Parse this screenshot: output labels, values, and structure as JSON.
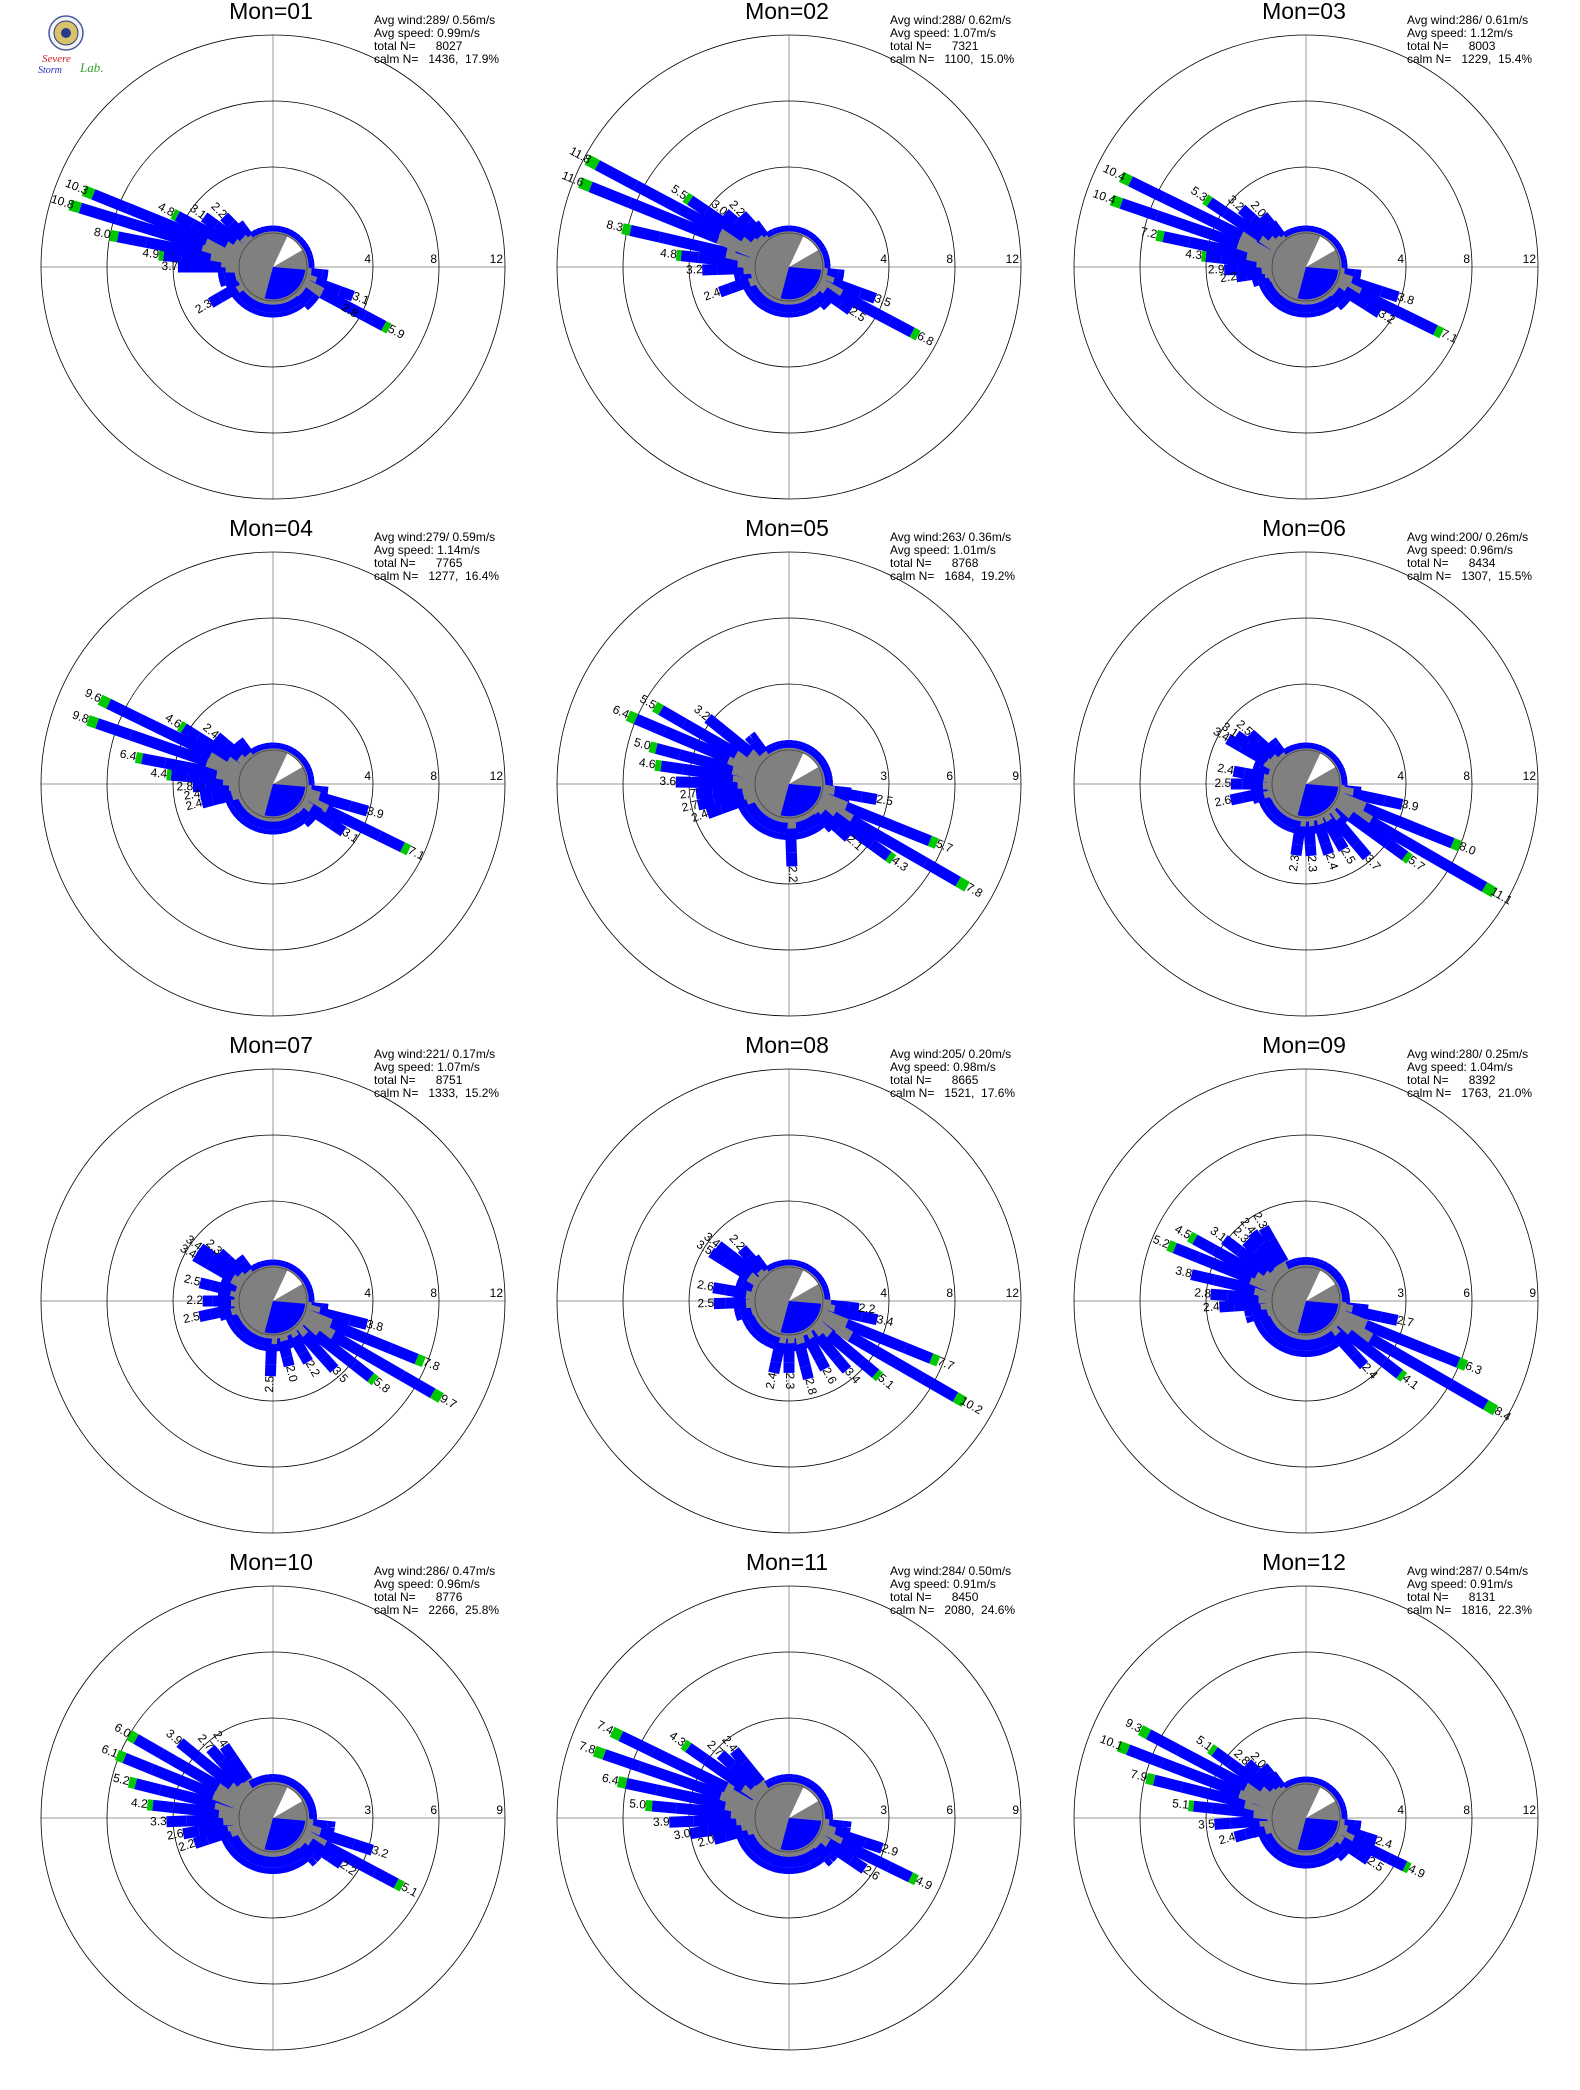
{
  "logo": {
    "line1": "Severe",
    "line2": "Storm",
    "line3": "Lab."
  },
  "colors": {
    "low": "#808080",
    "mid": "#0000ff",
    "high": "#00c800",
    "ring": "#000000",
    "axis": "#999999"
  },
  "chart_data": [
    {
      "type": "polar-wind-rose",
      "title": "Mon=01",
      "stats": {
        "avg_wind": "Avg wind:289/ 0.56m/s",
        "avg_speed": "Avg speed: 0.99m/s",
        "total_n": "total N=      8027",
        "calm_n": "calm N=   1436,  17.9%"
      },
      "rings": [
        4,
        8,
        12
      ],
      "labeled_bars": [
        {
          "dir": 292,
          "value": 10.3,
          "label": "10.3"
        },
        {
          "dir": 287,
          "value": 10.8,
          "label": "10.8"
        },
        {
          "dir": 281,
          "value": 8.0,
          "label": "8.0"
        },
        {
          "dir": 276,
          "value": 4.9,
          "label": "4.9"
        },
        {
          "dir": 270,
          "value": 3.7,
          "label": "3.7"
        },
        {
          "dir": 298,
          "value": 4.8,
          "label": "4.8"
        },
        {
          "dir": 306,
          "value": 3.1,
          "label": "3.1"
        },
        {
          "dir": 316,
          "value": 2.2,
          "label": "2.2"
        },
        {
          "dir": 240,
          "value": 2.3,
          "label": "2.3"
        },
        {
          "dir": 110,
          "value": 3.1,
          "label": "3.1"
        },
        {
          "dir": 120,
          "value": 2.8,
          "label": "2.8"
        },
        {
          "dir": 118,
          "value": 5.9,
          "label": "5.9"
        }
      ]
    },
    {
      "type": "polar-wind-rose",
      "title": "Mon=02",
      "stats": {
        "avg_wind": "Avg wind:288/ 0.62m/s",
        "avg_speed": "Avg speed: 1.07m/s",
        "total_n": "total N=      7321",
        "calm_n": "calm N=   1100,  15.0%"
      },
      "rings": [
        4,
        8,
        12
      ],
      "labeled_bars": [
        {
          "dir": 298,
          "value": 11.8,
          "label": "11.8"
        },
        {
          "dir": 292,
          "value": 11.6,
          "label": "11.6"
        },
        {
          "dir": 283,
          "value": 8.3,
          "label": "8.3"
        },
        {
          "dir": 276,
          "value": 4.8,
          "label": "4.8"
        },
        {
          "dir": 268,
          "value": 3.2,
          "label": "3.2"
        },
        {
          "dir": 304,
          "value": 5.5,
          "label": "5.5"
        },
        {
          "dir": 310,
          "value": 3.0,
          "label": "3.0"
        },
        {
          "dir": 318,
          "value": 2.2,
          "label": "2.2"
        },
        {
          "dir": 250,
          "value": 2.4,
          "label": "2.4"
        },
        {
          "dir": 110,
          "value": 3.5,
          "label": "3.5"
        },
        {
          "dir": 125,
          "value": 2.5,
          "label": "2.5"
        },
        {
          "dir": 118,
          "value": 6.8,
          "label": "6.8"
        }
      ]
    },
    {
      "type": "polar-wind-rose",
      "title": "Mon=03",
      "stats": {
        "avg_wind": "Avg wind:286/ 0.61m/s",
        "avg_speed": "Avg speed: 1.12m/s",
        "total_n": "total N=      8003",
        "calm_n": "calm N=   1229,  15.4%"
      },
      "rings": [
        4,
        8,
        12
      ],
      "labeled_bars": [
        {
          "dir": 296,
          "value": 10.4,
          "label": "10.4"
        },
        {
          "dir": 289,
          "value": 10.4,
          "label": "10.4"
        },
        {
          "dir": 282,
          "value": 7.2,
          "label": "7.2"
        },
        {
          "dir": 276,
          "value": 4.3,
          "label": "4.3"
        },
        {
          "dir": 268,
          "value": 2.9,
          "label": "2.9"
        },
        {
          "dir": 262,
          "value": 2.2,
          "label": "2.2"
        },
        {
          "dir": 304,
          "value": 5.3,
          "label": "5.3"
        },
        {
          "dir": 312,
          "value": 3.2,
          "label": "3.2"
        },
        {
          "dir": 320,
          "value": 2.0,
          "label": "2.0"
        },
        {
          "dir": 108,
          "value": 3.8,
          "label": "3.8"
        },
        {
          "dir": 122,
          "value": 3.2,
          "label": "3.2"
        },
        {
          "dir": 116,
          "value": 7.1,
          "label": "7.1"
        }
      ]
    },
    {
      "type": "polar-wind-rose",
      "title": "Mon=04",
      "stats": {
        "avg_wind": "Avg wind:279/ 0.59m/s",
        "avg_speed": "Avg speed: 1.14m/s",
        "total_n": "total N=      7765",
        "calm_n": "calm N=   1277,  16.4%"
      },
      "rings": [
        4,
        8,
        12
      ],
      "labeled_bars": [
        {
          "dir": 296,
          "value": 9.6,
          "label": "9.6"
        },
        {
          "dir": 289,
          "value": 9.8,
          "label": "9.8"
        },
        {
          "dir": 281,
          "value": 6.4,
          "label": "6.4"
        },
        {
          "dir": 275,
          "value": 4.4,
          "label": "4.4"
        },
        {
          "dir": 268,
          "value": 2.8,
          "label": "2.8"
        },
        {
          "dir": 262,
          "value": 2.4,
          "label": "2.4"
        },
        {
          "dir": 255,
          "value": 2.4,
          "label": "2.4"
        },
        {
          "dir": 302,
          "value": 4.6,
          "label": "4.6"
        },
        {
          "dir": 310,
          "value": 2.4,
          "label": "2.4"
        },
        {
          "dir": 106,
          "value": 3.9,
          "label": "3.9"
        },
        {
          "dir": 124,
          "value": 3.1,
          "label": "3.1"
        },
        {
          "dir": 116,
          "value": 7.1,
          "label": "7.1"
        }
      ]
    },
    {
      "type": "polar-wind-rose",
      "title": "Mon=05",
      "stats": {
        "avg_wind": "Avg wind:263/ 0.36m/s",
        "avg_speed": "Avg speed: 1.01m/s",
        "total_n": "total N=      8768",
        "calm_n": "calm N=   1684,  19.2%"
      },
      "rings": [
        3,
        6,
        9
      ],
      "labeled_bars": [
        {
          "dir": 300,
          "value": 5.5,
          "label": "5.5"
        },
        {
          "dir": 293,
          "value": 6.4,
          "label": "6.4"
        },
        {
          "dir": 285,
          "value": 5.0,
          "label": "5.0"
        },
        {
          "dir": 278,
          "value": 4.6,
          "label": "4.6"
        },
        {
          "dir": 271,
          "value": 3.6,
          "label": "3.6"
        },
        {
          "dir": 264,
          "value": 2.7,
          "label": "2.7"
        },
        {
          "dir": 257,
          "value": 2.7,
          "label": "2.7"
        },
        {
          "dir": 250,
          "value": 2.4,
          "label": "2.4"
        },
        {
          "dir": 309,
          "value": 3.2,
          "label": "3.2"
        },
        {
          "dir": 100,
          "value": 2.5,
          "label": "2.5"
        },
        {
          "dir": 112,
          "value": 5.7,
          "label": "5.7"
        },
        {
          "dir": 132,
          "value": 2.1,
          "label": "2.1"
        },
        {
          "dir": 126,
          "value": 4.3,
          "label": "4.3"
        },
        {
          "dir": 120,
          "value": 7.8,
          "label": "7.8"
        },
        {
          "dir": 178,
          "value": 2.2,
          "label": "2.2"
        }
      ]
    },
    {
      "type": "polar-wind-rose",
      "title": "Mon=06",
      "stats": {
        "avg_wind": "Avg wind:200/ 0.26m/s",
        "avg_speed": "Avg speed: 0.96m/s",
        "total_n": "total N=      8434",
        "calm_n": "calm N=   1307,  15.5%"
      },
      "rings": [
        4,
        8,
        12
      ],
      "labeled_bars": [
        {
          "dir": 300,
          "value": 3.4,
          "label": "3.4"
        },
        {
          "dir": 305,
          "value": 3.1,
          "label": "3.1"
        },
        {
          "dir": 312,
          "value": 2.5,
          "label": "2.5"
        },
        {
          "dir": 280,
          "value": 2.4,
          "label": "2.4"
        },
        {
          "dir": 270,
          "value": 2.5,
          "label": "2.5"
        },
        {
          "dir": 258,
          "value": 2.6,
          "label": "2.6"
        },
        {
          "dir": 102,
          "value": 3.9,
          "label": "3.9"
        },
        {
          "dir": 112,
          "value": 8.0,
          "label": "8.0"
        },
        {
          "dir": 120,
          "value": 11.1,
          "label": "11.1"
        },
        {
          "dir": 126,
          "value": 5.7,
          "label": "5.7"
        },
        {
          "dir": 140,
          "value": 3.7,
          "label": "3.7"
        },
        {
          "dir": 150,
          "value": 2.5,
          "label": "2.5"
        },
        {
          "dir": 162,
          "value": 2.4,
          "label": "2.4"
        },
        {
          "dir": 176,
          "value": 2.3,
          "label": "2.3"
        },
        {
          "dir": 188,
          "value": 2.3,
          "label": "2.3"
        }
      ]
    },
    {
      "type": "polar-wind-rose",
      "title": "Mon=07",
      "stats": {
        "avg_wind": "Avg wind:221/ 0.17m/s",
        "avg_speed": "Avg speed: 1.07m/s",
        "total_n": "total N=      8751",
        "calm_n": "calm N=   1333,  15.2%"
      },
      "rings": [
        4,
        8,
        12
      ],
      "labeled_bars": [
        {
          "dir": 300,
          "value": 3.4,
          "label": "3.4"
        },
        {
          "dir": 306,
          "value": 3.4,
          "label": "3.4"
        },
        {
          "dir": 312,
          "value": 2.3,
          "label": "2.3"
        },
        {
          "dir": 284,
          "value": 2.5,
          "label": "2.5"
        },
        {
          "dir": 270,
          "value": 2.2,
          "label": "2.2"
        },
        {
          "dir": 258,
          "value": 2.5,
          "label": "2.5"
        },
        {
          "dir": 104,
          "value": 3.8,
          "label": "3.8"
        },
        {
          "dir": 112,
          "value": 7.8,
          "label": "7.8"
        },
        {
          "dir": 120,
          "value": 9.7,
          "label": "9.7"
        },
        {
          "dir": 128,
          "value": 5.8,
          "label": "5.8"
        },
        {
          "dir": 138,
          "value": 3.5,
          "label": "3.5"
        },
        {
          "dir": 150,
          "value": 2.2,
          "label": "2.2"
        },
        {
          "dir": 166,
          "value": 2.0,
          "label": "2.0"
        },
        {
          "dir": 182,
          "value": 2.5,
          "label": "2.5"
        }
      ]
    },
    {
      "type": "polar-wind-rose",
      "title": "Mon=08",
      "stats": {
        "avg_wind": "Avg wind:205/ 0.20m/s",
        "avg_speed": "Avg speed: 0.98m/s",
        "total_n": "total N=      8665",
        "calm_n": "calm N=   1521,  17.6%"
      },
      "rings": [
        4,
        8,
        12
      ],
      "labeled_bars": [
        {
          "dir": 302,
          "value": 3.5,
          "label": "3.5"
        },
        {
          "dir": 308,
          "value": 3.4,
          "label": "3.4"
        },
        {
          "dir": 318,
          "value": 2.2,
          "label": "2.2"
        },
        {
          "dir": 280,
          "value": 2.6,
          "label": "2.6"
        },
        {
          "dir": 268,
          "value": 2.5,
          "label": "2.5"
        },
        {
          "dir": 96,
          "value": 2.2,
          "label": "2.2"
        },
        {
          "dir": 102,
          "value": 3.4,
          "label": "3.4"
        },
        {
          "dir": 112,
          "value": 7.7,
          "label": "7.7"
        },
        {
          "dir": 120,
          "value": 10.2,
          "label": "10.2"
        },
        {
          "dir": 130,
          "value": 5.1,
          "label": "5.1"
        },
        {
          "dir": 140,
          "value": 3.4,
          "label": "3.4"
        },
        {
          "dir": 152,
          "value": 2.6,
          "label": "2.6"
        },
        {
          "dir": 166,
          "value": 2.8,
          "label": "2.8"
        },
        {
          "dir": 180,
          "value": 2.3,
          "label": "2.3"
        },
        {
          "dir": 192,
          "value": 2.4,
          "label": "2.4"
        }
      ]
    },
    {
      "type": "polar-wind-rose",
      "title": "Mon=09",
      "stats": {
        "avg_wind": "Avg wind:280/ 0.25m/s",
        "avg_speed": "Avg speed: 1.04m/s",
        "total_n": "total N=      8392",
        "calm_n": "calm N=   1763,  21.0%"
      },
      "rings": [
        3,
        6,
        9
      ],
      "labeled_bars": [
        {
          "dir": 292,
          "value": 5.2,
          "label": "5.2"
        },
        {
          "dir": 299,
          "value": 4.5,
          "label": "4.5"
        },
        {
          "dir": 307,
          "value": 3.1,
          "label": "3.1"
        },
        {
          "dir": 315,
          "value": 2.3,
          "label": "2.3"
        },
        {
          "dir": 322,
          "value": 2.4,
          "label": "2.4"
        },
        {
          "dir": 330,
          "value": 2.3,
          "label": "2.3"
        },
        {
          "dir": 283,
          "value": 3.8,
          "label": "3.8"
        },
        {
          "dir": 274,
          "value": 2.8,
          "label": "2.8"
        },
        {
          "dir": 266,
          "value": 2.4,
          "label": "2.4"
        },
        {
          "dir": 102,
          "value": 2.7,
          "label": "2.7"
        },
        {
          "dir": 112,
          "value": 6.3,
          "label": "6.3"
        },
        {
          "dir": 120,
          "value": 8.4,
          "label": "8.4"
        },
        {
          "dir": 128,
          "value": 4.1,
          "label": "4.1"
        },
        {
          "dir": 138,
          "value": 2.4,
          "label": "2.4"
        }
      ]
    },
    {
      "type": "polar-wind-rose",
      "title": "Mon=10",
      "stats": {
        "avg_wind": "Avg wind:286/ 0.47m/s",
        "avg_speed": "Avg speed: 0.96m/s",
        "total_n": "total N=      8776",
        "calm_n": "calm N=   2266,  25.8%"
      },
      "rings": [
        3,
        6,
        9
      ],
      "labeled_bars": [
        {
          "dir": 300,
          "value": 6.0,
          "label": "6.0"
        },
        {
          "dir": 292,
          "value": 6.1,
          "label": "6.1"
        },
        {
          "dir": 284,
          "value": 5.2,
          "label": "5.2"
        },
        {
          "dir": 276,
          "value": 4.2,
          "label": "4.2"
        },
        {
          "dir": 268,
          "value": 3.3,
          "label": "3.3"
        },
        {
          "dir": 260,
          "value": 2.6,
          "label": "2.6"
        },
        {
          "dir": 252,
          "value": 2.2,
          "label": "2.2"
        },
        {
          "dir": 309,
          "value": 3.9,
          "label": "3.9"
        },
        {
          "dir": 318,
          "value": 2.7,
          "label": "2.7"
        },
        {
          "dir": 326,
          "value": 2.4,
          "label": "2.4"
        },
        {
          "dir": 108,
          "value": 3.2,
          "label": "3.2"
        },
        {
          "dir": 124,
          "value": 2.2,
          "label": "2.2"
        },
        {
          "dir": 118,
          "value": 5.1,
          "label": "5.1"
        }
      ]
    },
    {
      "type": "polar-wind-rose",
      "title": "Mon=11",
      "stats": {
        "avg_wind": "Avg wind:284/ 0.50m/s",
        "avg_speed": "Avg speed: 0.91m/s",
        "total_n": "total N=      8450",
        "calm_n": "calm N=   2080,  24.6%"
      },
      "rings": [
        3,
        6,
        9
      ],
      "labeled_bars": [
        {
          "dir": 296,
          "value": 7.4,
          "label": "7.4"
        },
        {
          "dir": 289,
          "value": 7.8,
          "label": "7.8"
        },
        {
          "dir": 282,
          "value": 6.4,
          "label": "6.4"
        },
        {
          "dir": 275,
          "value": 5.0,
          "label": "5.0"
        },
        {
          "dir": 268,
          "value": 3.9,
          "label": "3.9"
        },
        {
          "dir": 261,
          "value": 3.0,
          "label": "3.0"
        },
        {
          "dir": 254,
          "value": 2.0,
          "label": "2.0"
        },
        {
          "dir": 305,
          "value": 4.3,
          "label": "4.3"
        },
        {
          "dir": 313,
          "value": 2.7,
          "label": "2.7"
        },
        {
          "dir": 321,
          "value": 2.4,
          "label": "2.4"
        },
        {
          "dir": 108,
          "value": 2.9,
          "label": "2.9"
        },
        {
          "dir": 124,
          "value": 2.6,
          "label": "2.6"
        },
        {
          "dir": 116,
          "value": 4.9,
          "label": "4.9"
        }
      ]
    },
    {
      "type": "polar-wind-rose",
      "title": "Mon=12",
      "stats": {
        "avg_wind": "Avg wind:287/ 0.54m/s",
        "avg_speed": "Avg speed: 0.91m/s",
        "total_n": "total N=      8131",
        "calm_n": "calm N=   1816,  22.3%"
      },
      "rings": [
        4,
        8,
        12
      ],
      "labeled_bars": [
        {
          "dir": 298,
          "value": 9.3,
          "label": "9.3"
        },
        {
          "dir": 291,
          "value": 10.1,
          "label": "10.1"
        },
        {
          "dir": 284,
          "value": 7.9,
          "label": "7.9"
        },
        {
          "dir": 276,
          "value": 5.1,
          "label": "5.1"
        },
        {
          "dir": 266,
          "value": 3.5,
          "label": "3.5"
        },
        {
          "dir": 255,
          "value": 2.4,
          "label": "2.4"
        },
        {
          "dir": 306,
          "value": 5.1,
          "label": "5.1"
        },
        {
          "dir": 313,
          "value": 2.8,
          "label": "2.8"
        },
        {
          "dir": 320,
          "value": 2.0,
          "label": "2.0"
        },
        {
          "dir": 108,
          "value": 2.4,
          "label": "2.4"
        },
        {
          "dir": 124,
          "value": 2.5,
          "label": "2.5"
        },
        {
          "dir": 116,
          "value": 4.9,
          "label": "4.9"
        }
      ]
    }
  ]
}
